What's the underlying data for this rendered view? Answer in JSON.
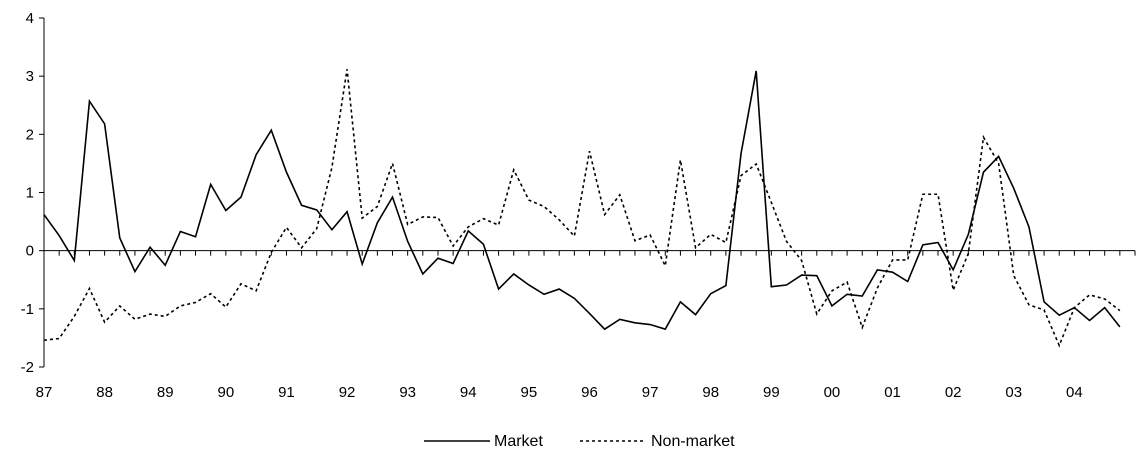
{
  "chart_data": {
    "type": "line",
    "title": "",
    "xlabel": "",
    "ylabel": "",
    "ylim": [
      -2,
      4
    ],
    "yticks": [
      "-2",
      "-1",
      "0",
      "1",
      "2",
      "3",
      "4"
    ],
    "xticks": [
      "87",
      "88",
      "89",
      "90",
      "91",
      "92",
      "93",
      "94",
      "95",
      "96",
      "97",
      "98",
      "99",
      "00",
      "01",
      "02",
      "03",
      "04"
    ],
    "grid": false,
    "legend_position": "bottom",
    "x_start_year": 1987,
    "periods_per_year": 4,
    "series": [
      {
        "name": "Market",
        "style": "solid",
        "color": "#000000",
        "values": [
          0.62,
          0.26,
          -0.17,
          2.57,
          2.18,
          0.22,
          -0.36,
          0.06,
          -0.25,
          0.33,
          0.24,
          1.14,
          0.69,
          0.92,
          1.65,
          2.07,
          1.35,
          0.78,
          0.7,
          0.36,
          0.67,
          -0.23,
          0.48,
          0.92,
          0.16,
          -0.4,
          -0.13,
          -0.22,
          0.34,
          0.11,
          -0.66,
          -0.4,
          -0.59,
          -0.75,
          -0.66,
          -0.82,
          -1.08,
          -1.35,
          -1.18,
          -1.24,
          -1.27,
          -1.35,
          -0.88,
          -1.1,
          -0.74,
          -0.6,
          1.67,
          3.09,
          -0.62,
          -0.59,
          -0.42,
          -0.43,
          -0.95,
          -0.75,
          -0.78,
          -0.33,
          -0.37,
          -0.53,
          0.1,
          0.14,
          -0.33,
          0.28,
          1.35,
          1.62,
          1.07,
          0.41,
          -0.88,
          -1.11,
          -0.98,
          -1.2,
          -0.98,
          -1.31
        ]
      },
      {
        "name": "Non-market",
        "style": "dashed",
        "color": "#000000",
        "values": [
          -1.54,
          -1.51,
          -1.13,
          -0.65,
          -1.23,
          -0.95,
          -1.18,
          -1.09,
          -1.13,
          -0.95,
          -0.89,
          -0.74,
          -0.97,
          -0.57,
          -0.69,
          -0.03,
          0.4,
          0.05,
          0.38,
          1.43,
          3.12,
          0.56,
          0.76,
          1.5,
          0.45,
          0.58,
          0.57,
          0.08,
          0.41,
          0.55,
          0.44,
          1.39,
          0.87,
          0.76,
          0.53,
          0.25,
          1.71,
          0.62,
          0.96,
          0.17,
          0.27,
          -0.26,
          1.56,
          0.05,
          0.28,
          0.14,
          1.29,
          1.49,
          0.83,
          0.16,
          -0.17,
          -1.09,
          -0.69,
          -0.54,
          -1.32,
          -0.64,
          -0.16,
          -0.16,
          0.97,
          0.97,
          -0.68,
          -0.05,
          1.95,
          1.5,
          -0.43,
          -0.93,
          -1.02,
          -1.63,
          -0.98,
          -0.76,
          -0.83,
          -1.03
        ]
      }
    ]
  }
}
